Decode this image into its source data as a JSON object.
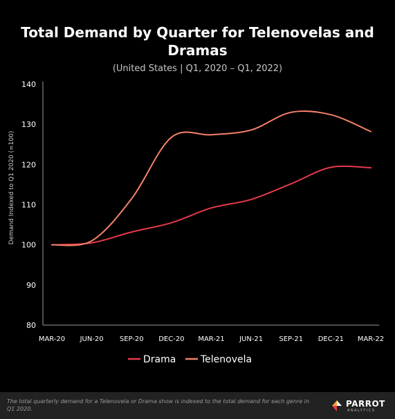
{
  "chart_data": {
    "type": "line",
    "title": "Total Demand by Quarter for Telenovelas and Dramas",
    "subtitle": "(United States  |  Q1, 2020 – Q1, 2022)",
    "xlabel": "",
    "ylabel": "Demand Indexed to Q1 2020 (=100)",
    "categories": [
      "MAR-20",
      "JUN-20",
      "SEP-20",
      "DEC-20",
      "MAR-21",
      "JUN-21",
      "SEP-21",
      "DEC-21",
      "MAR-22"
    ],
    "yticks": [
      "80",
      "90",
      "100",
      "110",
      "120",
      "130",
      "140"
    ],
    "ylim": [
      80,
      140
    ],
    "series": [
      {
        "name": "Drama",
        "color": "#e8394d",
        "values": [
          100,
          100.5,
          103.2,
          105.5,
          109.2,
          111.3,
          115.2,
          119.3,
          119.2
        ]
      },
      {
        "name": "Telenovela",
        "color": "#f4826a",
        "values": [
          100,
          101,
          111.5,
          126.8,
          127.4,
          128.6,
          133.0,
          132.4,
          128.2
        ]
      }
    ],
    "legend_position": "bottom",
    "grid": false
  },
  "footnote": "The total quarterly demand for a Telenovela or Drama show is indexed to the total demand for each genre in Q1 2020.",
  "logo": {
    "name": "PARROT",
    "sub": "ANALYTICS"
  }
}
